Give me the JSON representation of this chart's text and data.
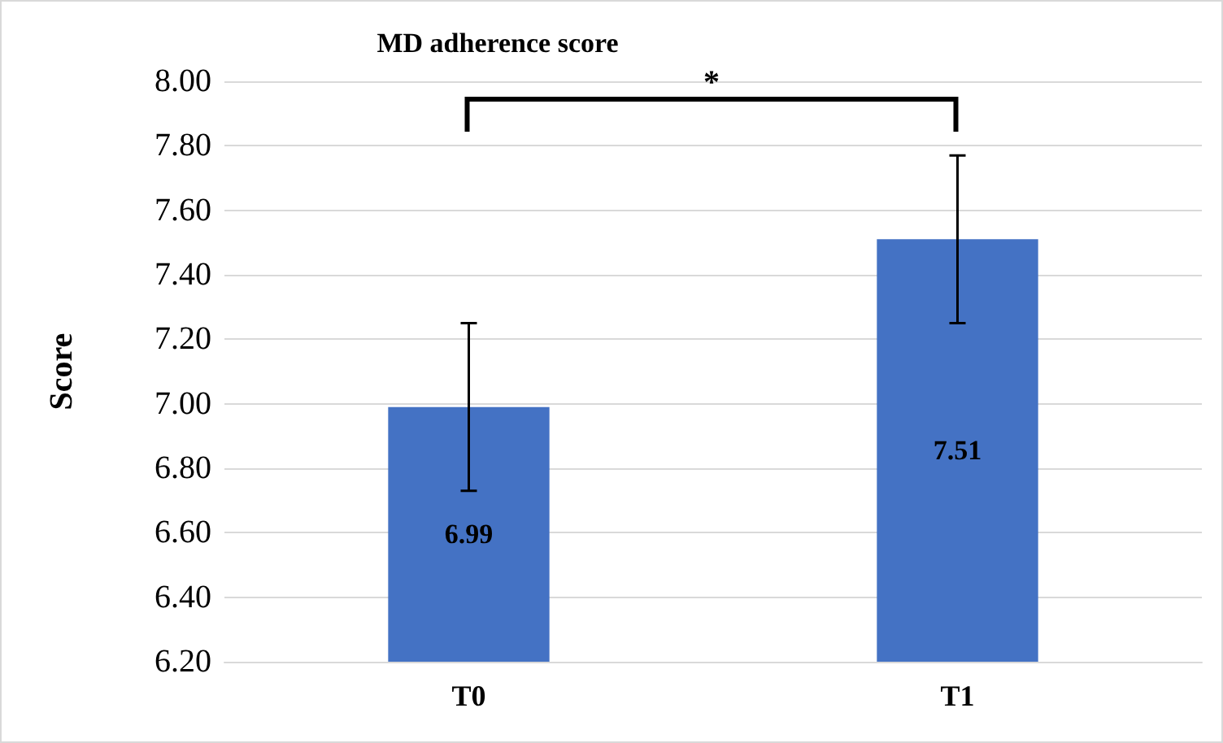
{
  "chart_data": {
    "type": "bar",
    "title": "MD adherence score",
    "ylabel": "Score",
    "categories": [
      "T0",
      "T1"
    ],
    "values": [
      6.99,
      7.51
    ],
    "errors": [
      0.26,
      0.26
    ],
    "color": "#4472c4",
    "data_labels": true,
    "ylim": [
      6.2,
      8.0
    ],
    "yticks": [
      {
        "value": 6.2,
        "label": "6.20"
      },
      {
        "value": 6.4,
        "label": "6.40"
      },
      {
        "value": 6.6,
        "label": "6.60"
      },
      {
        "value": 6.8,
        "label": "6.80"
      },
      {
        "value": 7.0,
        "label": "7.00"
      },
      {
        "value": 7.2,
        "label": "7.20"
      },
      {
        "value": 7.4,
        "label": "7.40"
      },
      {
        "value": 7.6,
        "label": "7.60"
      },
      {
        "value": 7.8,
        "label": "7.80"
      },
      {
        "value": 8.0,
        "label": "8.00"
      }
    ],
    "grid": "y",
    "annotations": [
      "*"
    ]
  }
}
